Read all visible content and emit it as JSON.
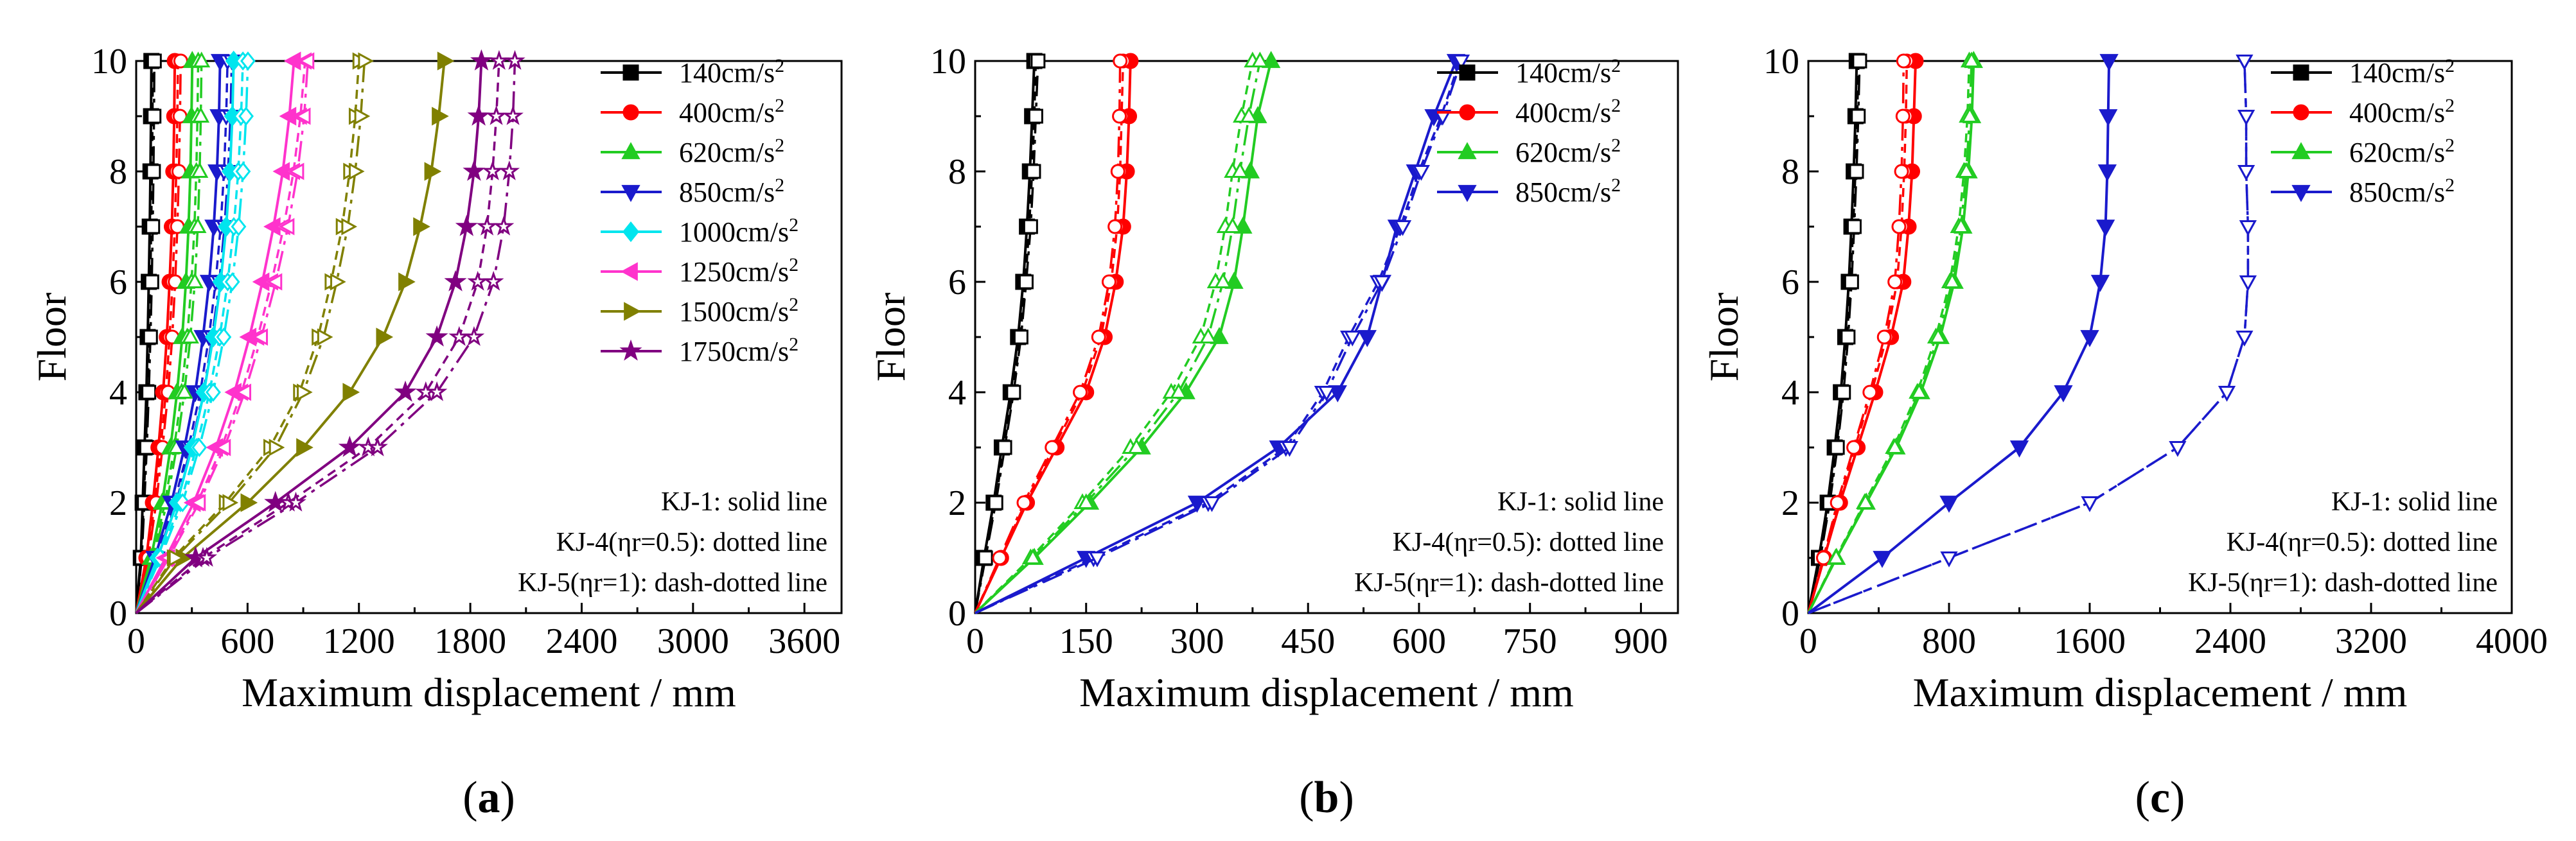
{
  "figure": {
    "panel_labels": [
      "(a)",
      "(b)",
      "(c)"
    ]
  },
  "chart_data": [
    {
      "type": "line",
      "panel_label": "(a)",
      "panel_letter": "a",
      "xlabel": "Maximum displacement / mm",
      "ylabel": "Floor",
      "xlim": [
        0,
        3800
      ],
      "ylim": [
        0,
        10
      ],
      "xticks": [
        0,
        600,
        1200,
        1800,
        2400,
        3000,
        3600
      ],
      "yticks": [
        0,
        2,
        4,
        6,
        8,
        10
      ],
      "grid": false,
      "legend_position": "top-right",
      "notes": [
        "KJ-1: solid line",
        "KJ-4(ηr=0.5): dotted line",
        "KJ-5(ηr=1): dash-dotted line"
      ],
      "line_styles": {
        "KJ-1": "solid",
        "KJ-4(ηr=0.5)": "dotted",
        "KJ-5(ηr=1)": "dash-dotted"
      },
      "floors": [
        0,
        1,
        2,
        3,
        4,
        5,
        6,
        7,
        8,
        9,
        10
      ],
      "series": [
        {
          "name": "140cm/s²",
          "label_base": "140cm/s",
          "color": "#000000",
          "marker": "square",
          "KJ-1": [
            0,
            25,
            35,
            45,
            55,
            62,
            68,
            73,
            77,
            80,
            82
          ],
          "KJ-4(ηr=0.5)": [
            0,
            28,
            40,
            52,
            62,
            70,
            76,
            81,
            85,
            88,
            90
          ],
          "KJ-5(ηr=1)": [
            0,
            30,
            44,
            57,
            68,
            77,
            84,
            89,
            93,
            96,
            98
          ]
        },
        {
          "name": "400cm/s²",
          "label_base": "400cm/s",
          "color": "#ff0000",
          "marker": "circle",
          "KJ-1": [
            0,
            55,
            90,
            120,
            145,
            165,
            180,
            192,
            200,
            205,
            208
          ],
          "KJ-4(ηr=0.5)": [
            0,
            60,
            100,
            132,
            160,
            180,
            196,
            208,
            216,
            222,
            225
          ],
          "KJ-5(ηr=1)": [
            0,
            65,
            108,
            142,
            172,
            194,
            210,
            222,
            230,
            236,
            240
          ]
        },
        {
          "name": "620cm/s²",
          "label_base": "620cm/s",
          "color": "#22cc22",
          "marker": "triangle-up",
          "KJ-1": [
            0,
            80,
            140,
            185,
            220,
            248,
            268,
            282,
            292,
            298,
            302
          ],
          "KJ-4(ηr=0.5)": [
            0,
            90,
            155,
            205,
            245,
            275,
            298,
            314,
            324,
            330,
            334
          ],
          "KJ-5(ηr=1)": [
            0,
            95,
            165,
            218,
            260,
            292,
            316,
            332,
            342,
            348,
            352
          ]
        },
        {
          "name": "850cm/s²",
          "label_base": "850cm/s",
          "color": "#1a1acc",
          "marker": "triangle-down",
          "KJ-1": [
            0,
            100,
            190,
            260,
            318,
            360,
            393,
            418,
            435,
            446,
            452
          ],
          "KJ-4(ηr=0.5)": [
            0,
            108,
            205,
            282,
            345,
            392,
            428,
            455,
            473,
            485,
            492
          ],
          "KJ-5(ηr=1)": [
            0,
            112,
            215,
            296,
            362,
            410,
            448,
            476,
            495,
            508,
            515
          ]
        },
        {
          "name": "1000cm/s²",
          "label_base": "1000cm/s",
          "color": "#00e5ee",
          "marker": "diamond",
          "KJ-1": [
            0,
            115,
            220,
            300,
            365,
            415,
            455,
            485,
            505,
            518,
            525
          ],
          "KJ-4(ηr=0.5)": [
            0,
            125,
            238,
            325,
            395,
            450,
            493,
            526,
            550,
            565,
            575
          ],
          "KJ-5(ηr=1)": [
            0,
            130,
            250,
            340,
            415,
            472,
            518,
            552,
            576,
            592,
            602
          ]
        },
        {
          "name": "1250cm/s²",
          "label_base": "1250cm/s",
          "color": "#ff33cc",
          "marker": "triangle-left",
          "KJ-1": [
            0,
            160,
            310,
            430,
            530,
            610,
            680,
            740,
            790,
            825,
            850
          ],
          "KJ-4(ηr=0.5)": [
            0,
            170,
            330,
            460,
            568,
            655,
            730,
            795,
            848,
            885,
            910
          ],
          "KJ-5(ηr=1)": [
            0,
            175,
            340,
            475,
            585,
            675,
            752,
            818,
            870,
            905,
            925
          ]
        },
        {
          "name": "1500cm/s²",
          "label_base": "1500cm/s",
          "color": "#808000",
          "marker": "triangle-right",
          "KJ-1": [
            0,
            250,
            600,
            900,
            1150,
            1330,
            1450,
            1530,
            1590,
            1630,
            1660
          ],
          "KJ-4(ηr=0.5)": [
            0,
            200,
            480,
            720,
            880,
            980,
            1050,
            1110,
            1150,
            1180,
            1200
          ],
          "KJ-5(ηr=1)": [
            0,
            210,
            500,
            750,
            900,
            1010,
            1080,
            1140,
            1180,
            1210,
            1230
          ]
        },
        {
          "name": "1750cm/s²",
          "label_base": "1750cm/s",
          "color": "#800080",
          "marker": "star",
          "KJ-1": [
            0,
            320,
            750,
            1150,
            1450,
            1620,
            1720,
            1780,
            1820,
            1845,
            1860
          ],
          "KJ-4(ηr=0.5)": [
            0,
            360,
            820,
            1250,
            1560,
            1740,
            1840,
            1890,
            1920,
            1940,
            1955
          ],
          "KJ-5(ηr=1)": [
            0,
            380,
            860,
            1300,
            1620,
            1820,
            1925,
            1980,
            2010,
            2030,
            2040
          ]
        }
      ]
    },
    {
      "type": "line",
      "panel_label": "(b)",
      "panel_letter": "b",
      "xlabel": "Maximum displacement / mm",
      "ylabel": "Floor",
      "xlim": [
        0,
        950
      ],
      "ylim": [
        0,
        10
      ],
      "xticks": [
        0,
        150,
        300,
        450,
        600,
        750,
        900
      ],
      "yticks": [
        0,
        2,
        4,
        6,
        8,
        10
      ],
      "grid": false,
      "legend_position": "top-right",
      "notes": [
        "KJ-1: solid line",
        "KJ-4(ηr=0.5): dotted line",
        "KJ-5(ηr=1): dash-dotted line"
      ],
      "line_styles": {
        "KJ-1": "solid",
        "KJ-4(ηr=0.5)": "dotted",
        "KJ-5(ηr=1)": "dash-dotted"
      },
      "floors": [
        0,
        1,
        2,
        3,
        4,
        5,
        6,
        7,
        8,
        9,
        10
      ],
      "series": [
        {
          "name": "140cm/s²",
          "label_base": "140cm/s",
          "color": "#000000",
          "marker": "square",
          "KJ-1": [
            0,
            12,
            25,
            36,
            48,
            58,
            65,
            70,
            74,
            77,
            80
          ],
          "KJ-4(ηr=0.5)": [
            0,
            13,
            27,
            39,
            51,
            61,
            68,
            73,
            77,
            80,
            82
          ],
          "KJ-5(ηr=1)": [
            0,
            14,
            28,
            40,
            52,
            62,
            69,
            75,
            79,
            82,
            85
          ]
        },
        {
          "name": "400cm/s²",
          "label_base": "400cm/s",
          "color": "#ff0000",
          "marker": "circle",
          "KJ-1": [
            0,
            35,
            70,
            110,
            150,
            175,
            190,
            200,
            205,
            208,
            210
          ],
          "KJ-4(ηr=0.5)": [
            0,
            34,
            68,
            106,
            145,
            170,
            184,
            192,
            196,
            198,
            200
          ],
          "KJ-5(ηr=1)": [
            0,
            33,
            66,
            104,
            142,
            167,
            181,
            189,
            193,
            195,
            196
          ]
        },
        {
          "name": "620cm/s²",
          "label_base": "620cm/s",
          "color": "#22cc22",
          "marker": "triangle-up",
          "KJ-1": [
            0,
            80,
            155,
            225,
            285,
            330,
            350,
            362,
            372,
            382,
            400
          ],
          "KJ-4(ηr=0.5)": [
            0,
            75,
            145,
            210,
            265,
            305,
            325,
            338,
            348,
            360,
            375
          ],
          "KJ-5(ηr=1)": [
            0,
            78,
            150,
            218,
            275,
            315,
            335,
            348,
            358,
            370,
            385
          ]
        },
        {
          "name": "850cm/s²",
          "label_base": "850cm/s",
          "color": "#1a1acc",
          "marker": "triangle-down",
          "KJ-1": [
            0,
            150,
            300,
            410,
            490,
            530,
            550,
            570,
            595,
            620,
            650
          ],
          "KJ-4(ηr=0.5)": [
            0,
            160,
            315,
            420,
            470,
            505,
            545,
            575,
            600,
            630,
            655
          ],
          "KJ-5(ηr=1)": [
            0,
            165,
            320,
            425,
            475,
            510,
            550,
            578,
            603,
            632,
            657
          ]
        }
      ]
    },
    {
      "type": "line",
      "panel_label": "(c)",
      "panel_letter": "c",
      "xlabel": "Maximum displacement / mm",
      "ylabel": "Floor",
      "xlim": [
        0,
        4000
      ],
      "ylim": [
        0,
        10
      ],
      "xticks": [
        0,
        800,
        1600,
        2400,
        3200,
        4000
      ],
      "yticks": [
        0,
        2,
        4,
        6,
        8,
        10
      ],
      "grid": false,
      "legend_position": "top-right",
      "notes": [
        "KJ-1: solid line",
        "KJ-4(ηr=0.5): dotted line",
        "KJ-5(ηr=1): dash-dotted line"
      ],
      "line_styles": {
        "KJ-1": "solid",
        "KJ-4(ηr=0.5)": "dotted",
        "KJ-5(ηr=1)": "dash-dotted"
      },
      "floors": [
        0,
        1,
        2,
        3,
        4,
        5,
        6,
        7,
        8,
        9,
        10
      ],
      "series": [
        {
          "name": "140cm/s²",
          "label_base": "140cm/s",
          "color": "#000000",
          "marker": "square",
          "KJ-1": [
            0,
            60,
            110,
            150,
            185,
            210,
            230,
            245,
            258,
            268,
            275
          ],
          "KJ-4(ηr=0.5)": [
            0,
            65,
            118,
            160,
            195,
            220,
            240,
            255,
            268,
            278,
            285
          ],
          "KJ-5(ηr=1)": [
            0,
            68,
            122,
            165,
            200,
            226,
            246,
            261,
            274,
            284,
            292
          ]
        },
        {
          "name": "400cm/s²",
          "label_base": "400cm/s",
          "color": "#ff0000",
          "marker": "circle",
          "KJ-1": [
            0,
            90,
            180,
            280,
            380,
            470,
            540,
            570,
            590,
            600,
            610
          ],
          "KJ-4(ηr=0.5)": [
            0,
            88,
            170,
            265,
            360,
            445,
            505,
            530,
            545,
            555,
            560
          ],
          "KJ-5(ηr=1)": [
            0,
            86,
            165,
            258,
            350,
            432,
            492,
            515,
            530,
            538,
            542
          ]
        },
        {
          "name": "620cm/s²",
          "label_base": "620cm/s",
          "color": "#22cc22",
          "marker": "triangle-up",
          "KJ-1": [
            0,
            160,
            330,
            500,
            640,
            750,
            830,
            880,
            910,
            930,
            940
          ],
          "KJ-4(ηr=0.5)": [
            0,
            155,
            320,
            485,
            620,
            725,
            805,
            855,
            885,
            905,
            915
          ],
          "KJ-5(ηr=1)": [
            0,
            158,
            325,
            492,
            630,
            738,
            818,
            868,
            898,
            918,
            928
          ]
        },
        {
          "name": "850cm/s²",
          "label_base": "850cm/s",
          "color": "#1a1acc",
          "marker": "triangle-down",
          "KJ-1": [
            0,
            420,
            800,
            1200,
            1450,
            1600,
            1660,
            1690,
            1700,
            1705,
            1710
          ],
          "KJ-4(ηr=0.5)": [
            0,
            800,
            1600,
            2100,
            2380,
            2480,
            2500,
            2500,
            2490,
            2490,
            2480
          ],
          "KJ-5(ηr=1)": [
            0,
            800,
            1600,
            2100,
            2380,
            2480,
            2500,
            2500,
            2490,
            2490,
            2480
          ]
        }
      ]
    }
  ]
}
